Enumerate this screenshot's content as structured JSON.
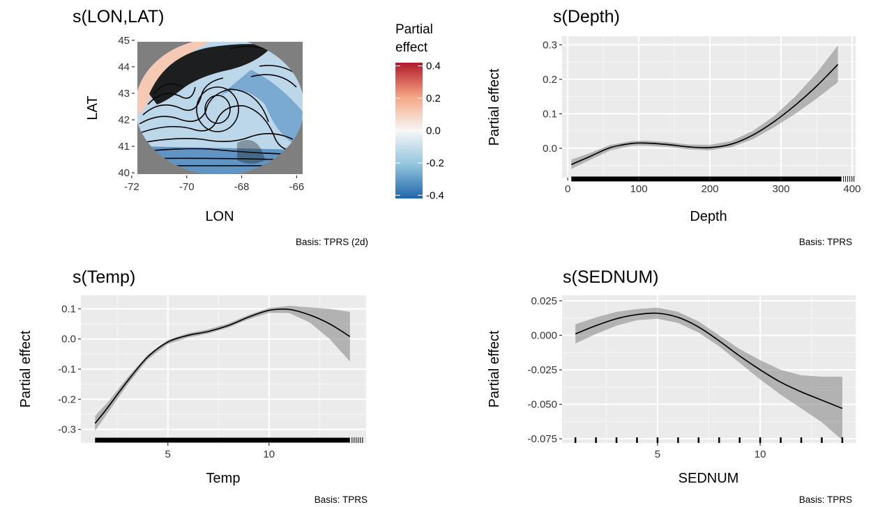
{
  "chart_data": [
    {
      "type": "heatmap",
      "title": "s(LON,LAT)",
      "xlabel": "LON",
      "ylabel": "LAT",
      "caption": "Basis: TPRS (2d)",
      "xlim": [
        -72.2,
        -65.4
      ],
      "ylim": [
        39.9,
        45.1
      ],
      "xticks": [
        -72,
        -70,
        -68,
        -66
      ],
      "yticks": [
        40,
        41,
        42,
        43,
        44,
        45
      ],
      "legend": {
        "title_line1": "Partial",
        "title_line2": "effect",
        "ticks": [
          0.4,
          0.2,
          0.0,
          -0.2,
          -0.4
        ],
        "tick_labels": [
          "0.4",
          "0.2",
          "0.0",
          "-0.2",
          "-0.4"
        ],
        "range": [
          -0.42,
          0.42
        ],
        "position": "right",
        "colors": [
          "#2166ac",
          "#92c5de",
          "#f7f7f7",
          "#f4a582",
          "#b2182b"
        ]
      },
      "missing_color": "#7f7f7f"
    },
    {
      "type": "line",
      "title": "s(Depth)",
      "xlabel": "Depth",
      "ylabel": "Partial effect",
      "caption": "Basis: TPRS",
      "xlim": [
        -8,
        405
      ],
      "ylim": [
        -0.085,
        0.325
      ],
      "xticks": [
        0,
        100,
        200,
        300,
        400
      ],
      "xtick_labels": [
        "0",
        "100",
        "200",
        "300",
        "400"
      ],
      "yticks": [
        0.0,
        0.1,
        0.2,
        0.3
      ],
      "ytick_labels": [
        "0.0",
        "0.1",
        "0.2",
        "0.3"
      ],
      "x": [
        5,
        30,
        60,
        90,
        110,
        140,
        170,
        200,
        230,
        260,
        290,
        320,
        350,
        380
      ],
      "fit": [
        -0.047,
        -0.025,
        0.002,
        0.014,
        0.015,
        0.011,
        0.004,
        0.002,
        0.012,
        0.038,
        0.077,
        0.125,
        0.18,
        0.243
      ],
      "lower": [
        -0.06,
        -0.035,
        -0.006,
        0.007,
        0.008,
        0.004,
        -0.003,
        -0.006,
        0.003,
        0.026,
        0.061,
        0.1,
        0.144,
        0.192
      ],
      "upper": [
        -0.033,
        -0.015,
        0.01,
        0.021,
        0.022,
        0.018,
        0.011,
        0.01,
        0.021,
        0.05,
        0.093,
        0.15,
        0.218,
        0.298
      ],
      "rug_range": [
        5,
        385
      ]
    },
    {
      "type": "line",
      "title": "s(Temp)",
      "xlabel": "Temp",
      "ylabel": "Partial effect",
      "caption": "Basis: TPRS",
      "xlim": [
        0.7,
        14.8
      ],
      "ylim": [
        -0.345,
        0.145
      ],
      "xticks": [
        5,
        10
      ],
      "xtick_labels": [
        "5",
        "10"
      ],
      "yticks": [
        -0.3,
        -0.2,
        -0.1,
        0.0,
        0.1
      ],
      "ytick_labels": [
        "-0.3",
        "-0.2",
        "-0.1",
        "0.0",
        "0.1"
      ],
      "x": [
        1.4,
        2,
        3,
        4,
        5,
        6,
        7,
        8,
        9,
        10,
        11,
        12,
        13,
        14
      ],
      "fit": [
        -0.28,
        -0.23,
        -0.14,
        -0.06,
        -0.01,
        0.012,
        0.025,
        0.045,
        0.073,
        0.095,
        0.098,
        0.08,
        0.05,
        0.008
      ],
      "lower": [
        -0.305,
        -0.248,
        -0.152,
        -0.068,
        -0.017,
        0.005,
        0.018,
        0.038,
        0.066,
        0.087,
        0.086,
        0.055,
        0.0,
        -0.075
      ],
      "upper": [
        -0.255,
        -0.212,
        -0.128,
        -0.052,
        -0.003,
        0.019,
        0.032,
        0.052,
        0.08,
        0.103,
        0.11,
        0.105,
        0.1,
        0.09
      ],
      "rug_range": [
        1.4,
        14
      ]
    },
    {
      "type": "line",
      "title": "s(SEDNUM)",
      "xlabel": "SEDNUM",
      "ylabel": "Partial effect",
      "caption": "Basis: TPRS",
      "xlim": [
        0.35,
        14.65
      ],
      "ylim": [
        -0.078,
        0.029
      ],
      "xticks": [
        5,
        10
      ],
      "xtick_labels": [
        "5",
        "10"
      ],
      "yticks": [
        -0.075,
        -0.05,
        -0.025,
        0.0,
        0.025
      ],
      "ytick_labels": [
        "-0.075",
        "-0.050",
        "-0.025",
        "0.000",
        "0.025"
      ],
      "x": [
        1,
        2,
        3,
        4,
        5,
        6,
        7,
        8,
        9,
        10,
        11,
        12,
        13,
        14
      ],
      "fit": [
        0.001,
        0.007,
        0.012,
        0.015,
        0.016,
        0.013,
        0.006,
        -0.004,
        -0.015,
        -0.025,
        -0.034,
        -0.041,
        -0.047,
        -0.053
      ],
      "lower": [
        -0.006,
        0.001,
        0.007,
        0.011,
        0.012,
        0.009,
        0.002,
        -0.008,
        -0.02,
        -0.032,
        -0.043,
        -0.053,
        -0.063,
        -0.076
      ],
      "upper": [
        0.008,
        0.013,
        0.017,
        0.019,
        0.02,
        0.017,
        0.01,
        0.0,
        -0.01,
        -0.018,
        -0.025,
        -0.029,
        -0.03,
        -0.03
      ],
      "rug_values": [
        1,
        2,
        3,
        4,
        5,
        6,
        7,
        8,
        9,
        10,
        11,
        12,
        13,
        14
      ]
    }
  ]
}
